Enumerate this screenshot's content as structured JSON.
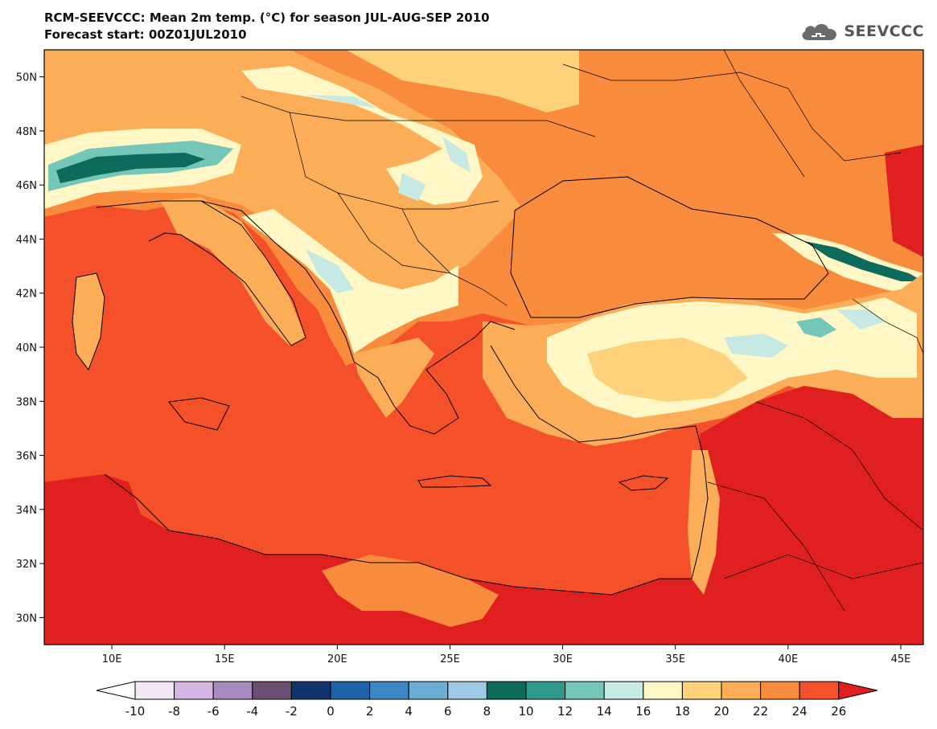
{
  "header": {
    "title_line1": "RCM-SEEVCCC: Mean 2m temp. (°C) for season JUL-AUG-SEP 2010",
    "title_line2": "Forecast start: 00Z01JUL2010",
    "logo_text": "SEEVCCC",
    "logo_icon": "cloud-icon"
  },
  "map": {
    "lat_range": [
      29,
      51
    ],
    "lon_range": [
      7,
      46
    ],
    "lat_ticks": [
      "50N",
      "48N",
      "46N",
      "44N",
      "42N",
      "40N",
      "38N",
      "36N",
      "34N",
      "32N",
      "30N"
    ],
    "lat_values": [
      50,
      48,
      46,
      44,
      42,
      40,
      38,
      36,
      34,
      32,
      30
    ],
    "lon_ticks": [
      "10E",
      "15E",
      "20E",
      "25E",
      "30E",
      "35E",
      "40E",
      "45E"
    ],
    "lon_values": [
      10,
      15,
      20,
      25,
      30,
      35,
      40,
      45
    ]
  },
  "colorbar": {
    "levels": [
      "-10",
      "-8",
      "-6",
      "-4",
      "-2",
      "0",
      "2",
      "4",
      "6",
      "8",
      "10",
      "12",
      "14",
      "16",
      "18",
      "20",
      "22",
      "24",
      "26"
    ],
    "colors": [
      "#f2e8f6",
      "#d7b6e3",
      "#a78bbf",
      "#6a4f72",
      "#10336b",
      "#1e62a8",
      "#3b87c4",
      "#6aaed6",
      "#9ccae4",
      "#0c6b5a",
      "#2f9a8b",
      "#74c7b8",
      "#c6e9e3",
      "#fff8c6",
      "#fdd27a",
      "#fbad57",
      "#f98c3c",
      "#f4502a"
    ],
    "under_color": "#ffffff",
    "over_color": "#e02020"
  }
}
